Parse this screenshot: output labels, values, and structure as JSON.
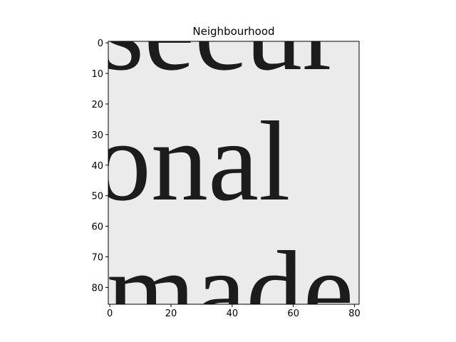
{
  "chart_data": {
    "type": "image",
    "title": "Neighbourhood",
    "xlim": [
      -0.5,
      81.5
    ],
    "ylim": [
      85.5,
      -0.5
    ],
    "xticks": [
      0,
      20,
      40,
      60,
      80
    ],
    "yticks": [
      0,
      10,
      20,
      30,
      40,
      50,
      60,
      70,
      80
    ],
    "image_text": [
      "secur",
      "onal",
      "made"
    ],
    "image_background": "#ebebeb",
    "ink_color": "#1c1c1c"
  }
}
